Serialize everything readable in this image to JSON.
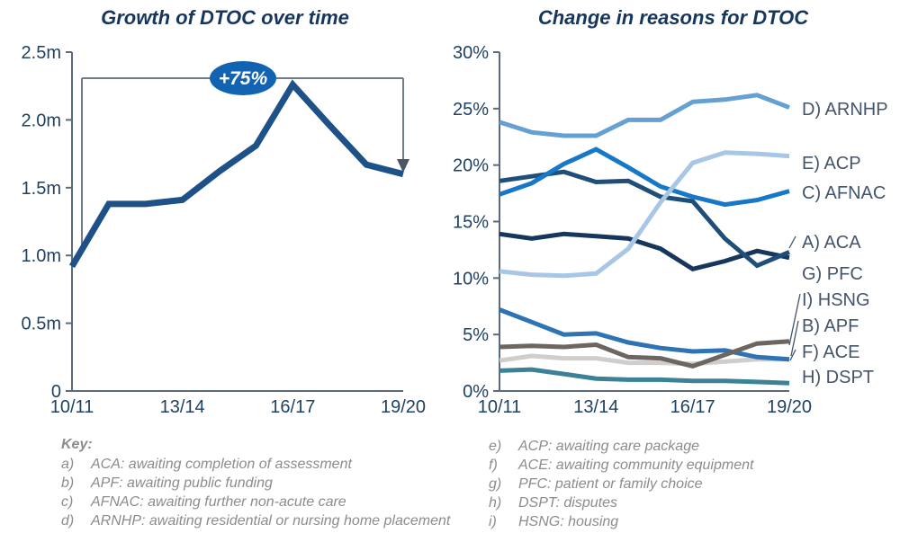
{
  "chart_data": [
    {
      "type": "line",
      "title": "Growth of DTOC over time",
      "x": [
        "10/11",
        "11/12",
        "12/13",
        "13/14",
        "14/15",
        "15/16",
        "16/17",
        "17/18",
        "18/19",
        "19/20"
      ],
      "x_tick_labels": [
        "10/11",
        "13/14",
        "16/17",
        "19/20"
      ],
      "ylim": [
        0,
        2.5
      ],
      "y_unit": "million delayed days",
      "y_ticks": [
        {
          "v": 0,
          "label": "0"
        },
        {
          "v": 0.5,
          "label": "0.5m"
        },
        {
          "v": 1.0,
          "label": "1.0m"
        },
        {
          "v": 1.5,
          "label": "1.5m"
        },
        {
          "v": 2.0,
          "label": "2.0m"
        },
        {
          "v": 2.5,
          "label": "2.5m"
        }
      ],
      "grid": false,
      "series": [
        {
          "id": "dtoc-total",
          "label": "",
          "color": "#1d5188",
          "width": 7,
          "values": [
            0.92,
            1.38,
            1.38,
            1.41,
            1.62,
            1.81,
            2.26,
            1.96,
            1.67,
            1.6
          ]
        }
      ],
      "annotation": {
        "label": "+75%",
        "bubble_color": "#1263b2",
        "text_color": "#ffffff"
      }
    },
    {
      "type": "line",
      "title": "Change in reasons for DTOC",
      "x": [
        "10/11",
        "11/12",
        "12/13",
        "13/14",
        "14/15",
        "15/16",
        "16/17",
        "17/18",
        "18/19",
        "19/20"
      ],
      "x_tick_labels": [
        "10/11",
        "13/14",
        "16/17",
        "19/20"
      ],
      "ylim": [
        0,
        30
      ],
      "y_unit": "percent",
      "y_ticks": [
        {
          "v": 0,
          "label": "0%"
        },
        {
          "v": 5,
          "label": "5%"
        },
        {
          "v": 10,
          "label": "10%"
        },
        {
          "v": 15,
          "label": "15%"
        },
        {
          "v": 20,
          "label": "20%"
        },
        {
          "v": 25,
          "label": "25%"
        },
        {
          "v": 30,
          "label": "30%"
        }
      ],
      "grid": false,
      "legend_position": "right",
      "series": [
        {
          "id": "ace",
          "label": "F) ACE",
          "color": "#d0cecc",
          "width": 5,
          "values": [
            2.7,
            3.1,
            2.9,
            2.9,
            2.5,
            2.5,
            2.4,
            2.6,
            2.8,
            2.8
          ]
        },
        {
          "id": "dspt",
          "label": "H) DSPT",
          "color": "#3b8297",
          "width": 5,
          "values": [
            1.8,
            1.9,
            1.5,
            1.1,
            1.0,
            1.0,
            0.9,
            0.9,
            0.8,
            0.7
          ]
        },
        {
          "id": "apf",
          "label": "B) APF",
          "color": "#2e74b5",
          "width": 5,
          "values": [
            7.2,
            6.1,
            5.0,
            5.1,
            4.3,
            3.8,
            3.5,
            3.6,
            3.0,
            2.8
          ]
        },
        {
          "id": "hsng",
          "label": "I) HSNG",
          "color": "#6d6660",
          "width": 5,
          "values": [
            3.9,
            4.0,
            3.9,
            4.1,
            3.0,
            2.9,
            2.2,
            3.2,
            4.2,
            4.4
          ]
        },
        {
          "id": "pfc",
          "label": "G) PFC",
          "color": "#16365c",
          "width": 5,
          "values": [
            13.9,
            13.5,
            13.9,
            13.7,
            13.5,
            12.6,
            10.8,
            11.5,
            12.4,
            11.8
          ]
        },
        {
          "id": "aca",
          "label": "A) ACA",
          "color": "#1f4e79",
          "width": 5,
          "values": [
            18.6,
            19.0,
            19.4,
            18.5,
            18.6,
            17.2,
            16.8,
            13.5,
            11.1,
            12.3
          ]
        },
        {
          "id": "afnac",
          "label": "C) AFNAC",
          "color": "#1778c8",
          "width": 5,
          "values": [
            17.4,
            18.4,
            20.1,
            21.4,
            19.8,
            18.1,
            17.2,
            16.5,
            16.9,
            17.7
          ]
        },
        {
          "id": "acp",
          "label": "E) ACP",
          "color": "#a8c6e5",
          "width": 5,
          "values": [
            10.6,
            10.3,
            10.2,
            10.4,
            12.6,
            16.7,
            20.2,
            21.1,
            21.0,
            20.8
          ]
        },
        {
          "id": "arnhp",
          "label": "D) ARNHP",
          "color": "#64a0d2",
          "width": 5,
          "values": [
            23.8,
            22.9,
            22.6,
            22.6,
            24.0,
            24.0,
            25.6,
            25.8,
            26.2,
            25.1
          ]
        }
      ]
    }
  ],
  "key": {
    "heading": "Key:",
    "left_items": [
      {
        "letter": "a)",
        "text": "ACA: awaiting completion of assessment"
      },
      {
        "letter": "b)",
        "text": "APF: awaiting public funding"
      },
      {
        "letter": "c)",
        "text": "AFNAC: awaiting further non-acute care"
      },
      {
        "letter": "d)",
        "text": "ARNHP: awaiting residential or nursing home placement"
      }
    ],
    "right_items": [
      {
        "letter": "e)",
        "text": "ACP: awaiting care package"
      },
      {
        "letter": "f)",
        "text": "ACE: awaiting community equipment"
      },
      {
        "letter": "g)",
        "text": "PFC: patient or family choice"
      },
      {
        "letter": "h)",
        "text": "DSPT: disputes"
      },
      {
        "letter": "i)",
        "text": "HSNG: housing"
      }
    ]
  },
  "colors": {
    "axis": "#5b6b7c",
    "bracket": "#707c8a",
    "arrowhead": "#4a5663",
    "title_text": "#17365d",
    "tick_text": "#1e4164",
    "series_label_text": "#44546a",
    "key_text": "#8c8c8c"
  }
}
